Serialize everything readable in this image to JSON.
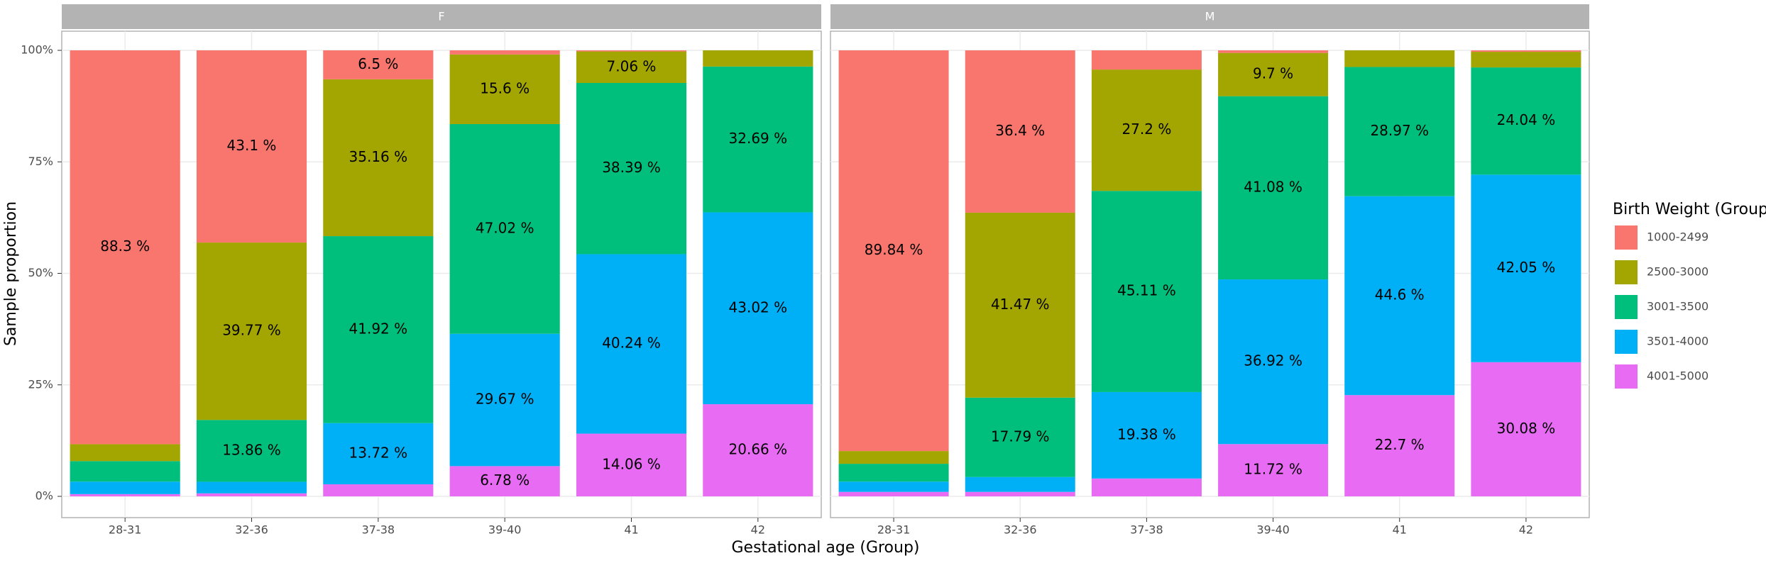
{
  "chart_data": {
    "type": "bar",
    "stacked": true,
    "x_label": "Gestational age (Group)",
    "y_label": "Sample proportion",
    "legend_title": "Birth Weight (Group)",
    "ylim": [
      0,
      100
    ],
    "yticks": [
      {
        "value": 0,
        "label": "0%"
      },
      {
        "value": 25,
        "label": "25%"
      },
      {
        "value": 50,
        "label": "50%"
      },
      {
        "value": 75,
        "label": "75%"
      },
      {
        "value": 100,
        "label": "100%"
      }
    ],
    "grid": true,
    "legend": "right",
    "series": [
      {
        "name": "1000-2499",
        "color": "#F8766D"
      },
      {
        "name": "2500-3000",
        "color": "#A3A500"
      },
      {
        "name": "3001-3500",
        "color": "#00BF7D"
      },
      {
        "name": "3501-4000",
        "color": "#00B0F6"
      },
      {
        "name": "4001-5000",
        "color": "#E76BF3"
      }
    ],
    "facets": [
      {
        "title": "F",
        "categories": [
          "28-31",
          "32-36",
          "37-38",
          "39-40",
          "41",
          "42"
        ],
        "series": [
          {
            "values": [
              88.3,
              43.1,
              6.5,
              0.93,
              0.25,
              0
            ],
            "value_labels": [
              "88.3 %",
              "43.1 %",
              "6.5 %",
              null,
              null,
              null
            ]
          },
          {
            "values": [
              3.8,
              39.77,
              35.16,
              15.6,
              7.06,
              3.63
            ],
            "value_labels": [
              null,
              "39.77 %",
              "35.16 %",
              "15.6 %",
              "7.06 %",
              null
            ]
          },
          {
            "values": [
              4.6,
              13.86,
              41.92,
              47.02,
              38.39,
              32.69
            ],
            "value_labels": [
              null,
              "13.86 %",
              "41.92 %",
              "47.02 %",
              "38.39 %",
              "32.69 %"
            ]
          },
          {
            "values": [
              2.8,
              2.6,
              13.72,
              29.67,
              40.24,
              43.02
            ],
            "value_labels": [
              null,
              null,
              "13.72 %",
              "29.67 %",
              "40.24 %",
              "43.02 %"
            ]
          },
          {
            "values": [
              0.5,
              0.67,
              2.7,
              6.78,
              14.06,
              20.66
            ],
            "value_labels": [
              null,
              null,
              null,
              "6.78 %",
              "14.06 %",
              "20.66 %"
            ]
          }
        ]
      },
      {
        "title": "M",
        "categories": [
          "28-31",
          "32-36",
          "37-38",
          "39-40",
          "41",
          "42"
        ],
        "series": [
          {
            "values": [
              89.84,
              36.4,
              4.31,
              0.58,
              0,
              0.33
            ],
            "value_labels": [
              "89.84 %",
              "36.4 %",
              null,
              null,
              null,
              null
            ]
          },
          {
            "values": [
              2.86,
              41.47,
              27.2,
              9.7,
              3.73,
              3.5
            ],
            "value_labels": [
              null,
              "41.47 %",
              "27.2 %",
              "9.7 %",
              null,
              null
            ]
          },
          {
            "values": [
              4.0,
              17.79,
              45.11,
              41.08,
              28.97,
              24.04
            ],
            "value_labels": [
              null,
              "17.79 %",
              "45.11 %",
              "41.08 %",
              "28.97 %",
              "24.04 %"
            ]
          },
          {
            "values": [
              2.3,
              3.34,
              19.38,
              36.92,
              44.6,
              42.05
            ],
            "value_labels": [
              null,
              null,
              "19.38 %",
              "36.92 %",
              "44.6 %",
              "42.05 %"
            ]
          },
          {
            "values": [
              1.0,
              1.0,
              4.0,
              11.72,
              22.7,
              30.08
            ],
            "value_labels": [
              null,
              null,
              null,
              "11.72 %",
              "22.7 %",
              "30.08 %"
            ]
          }
        ]
      }
    ]
  }
}
